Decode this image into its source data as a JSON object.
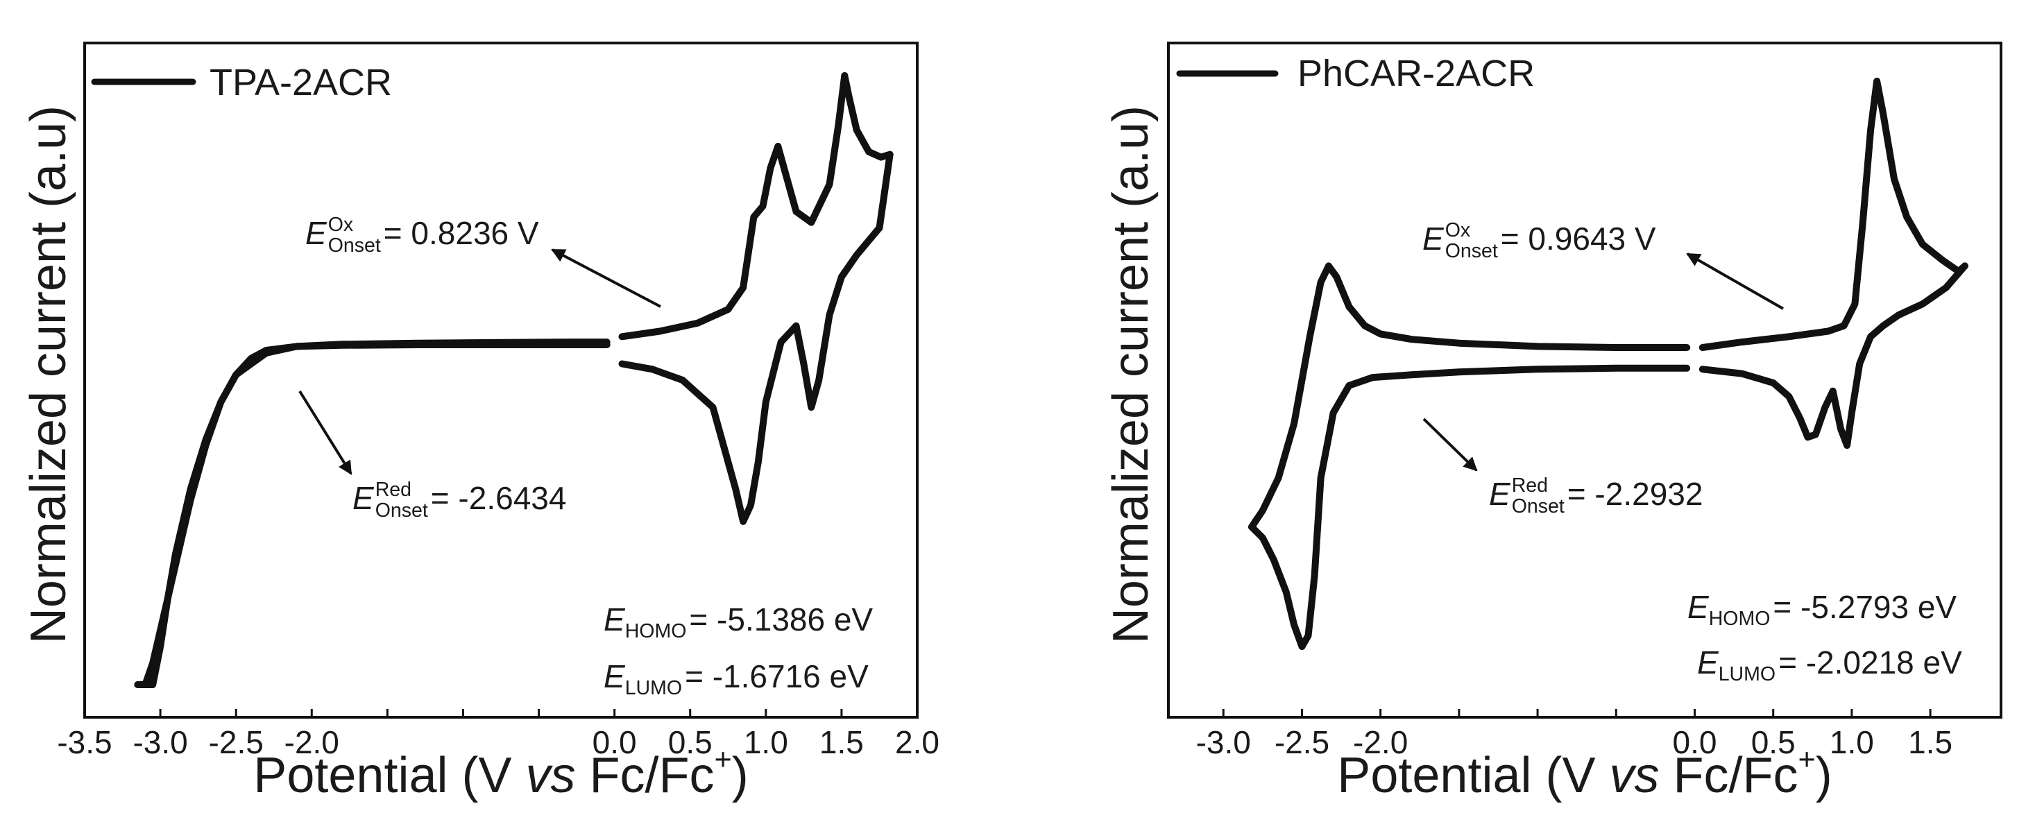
{
  "chart_data": [
    {
      "type": "line",
      "xlabel": {
        "pre": "Potential (V ",
        "vs": "vs",
        "post": " Fc/Fc",
        "sup": "+",
        "close": ")"
      },
      "ylabel": "Normalized current (a.u)",
      "xlim": [
        -3.5,
        2.0
      ],
      "xticks": [
        -3.5,
        -3.0,
        -2.5,
        -2.0,
        -1.5,
        -1.0,
        -0.5,
        0.0,
        0.5,
        1.0,
        1.5,
        2.0
      ],
      "xtick_labels": [
        "-3.5",
        "-3.0",
        "-2.5",
        "-2.0",
        "",
        "",
        "",
        "0.0",
        "0.5",
        "1.0",
        "1.5",
        "2.0"
      ],
      "grid": false,
      "legend": {
        "position": "top-left",
        "label": "TPA-2ACR"
      },
      "series": [
        {
          "name": "TPA-2ACR",
          "segments": [
            {
              "x": [
                -0.05,
                -0.3,
                -0.8,
                -1.3,
                -1.8,
                -2.1,
                -2.3,
                -2.5,
                -2.6,
                -2.7,
                -2.8,
                -2.9,
                -3.0,
                -3.05,
                -3.1,
                -3.13,
                -3.15
              ],
              "y": [
                6.3,
                6.3,
                6.29,
                6.28,
                6.26,
                6.22,
                6.1,
                5.7,
                5.2,
                4.4,
                3.4,
                2.2,
                1.0,
                0.4,
                0.0,
                0.0,
                0.0
              ]
            },
            {
              "x": [
                -3.15,
                -3.1,
                -3.05,
                -3.0,
                -2.95,
                -2.9,
                -2.8,
                -2.7,
                -2.6,
                -2.5,
                -2.4,
                -2.3,
                -2.1,
                -1.8,
                -1.3,
                -0.8,
                -0.3,
                -0.05
              ],
              "y": [
                0.0,
                0.0,
                0.0,
                0.7,
                1.6,
                2.4,
                3.6,
                4.5,
                5.2,
                5.7,
                6.0,
                6.15,
                6.22,
                6.24,
                6.25,
                6.25,
                6.25,
                6.25
              ]
            },
            {
              "x": [
                0.05,
                0.3,
                0.55,
                0.75,
                0.85,
                0.92,
                0.98,
                1.03,
                1.08,
                1.13,
                1.2,
                1.3,
                1.42,
                1.48,
                1.52,
                1.55,
                1.6,
                1.68,
                1.76,
                1.82
              ],
              "y": [
                6.4,
                6.5,
                6.65,
                6.9,
                7.3,
                8.6,
                8.8,
                9.5,
                9.9,
                9.4,
                8.7,
                8.5,
                9.2,
                10.3,
                11.2,
                10.8,
                10.2,
                9.8,
                9.7,
                9.75
              ]
            },
            {
              "x": [
                1.82,
                1.75,
                1.6,
                1.5,
                1.42,
                1.35,
                1.3,
                1.25,
                1.2,
                1.1,
                1.0,
                0.95,
                0.9,
                0.85,
                0.8,
                0.65,
                0.45,
                0.25,
                0.05
              ],
              "y": [
                9.75,
                8.4,
                7.9,
                7.5,
                6.8,
                5.6,
                5.1,
                5.9,
                6.6,
                6.3,
                5.2,
                4.1,
                3.3,
                3.0,
                3.6,
                5.1,
                5.6,
                5.8,
                5.9
              ]
            }
          ]
        }
      ],
      "annotations": {
        "ox": {
          "E": "E",
          "sup": "Ox",
          "sub": "Onset",
          "text": "= 0.8236 V"
        },
        "red": {
          "E": "E",
          "sup": "Red",
          "sub": "Onset",
          "text": "= -2.6434"
        },
        "homo": {
          "E": "E",
          "sub": "HOMO",
          "text": "= -5.1386 eV"
        },
        "lumo": {
          "E": "E",
          "sub": "LUMO",
          "text": "= -1.6716 eV"
        }
      }
    },
    {
      "type": "line",
      "xlabel": {
        "pre": "Potential (V ",
        "vs": "vs",
        "post": " Fc/Fc",
        "sup": "+",
        "close": ")"
      },
      "ylabel": "Normalized current (a.u)",
      "xlim": [
        -3.35,
        1.95
      ],
      "xticks": [
        -3.0,
        -2.5,
        -2.0,
        -1.5,
        -1.0,
        -0.5,
        0.0,
        0.5,
        1.0,
        1.5
      ],
      "xtick_labels": [
        "-3.0",
        "-2.5",
        "-2.0",
        "",
        "",
        "",
        "0.0",
        "0.5",
        "1.0",
        "1.5"
      ],
      "grid": false,
      "legend": {
        "position": "top-left",
        "label": "PhCAR-2ACR"
      },
      "series": [
        {
          "name": "PhCAR-2ACR",
          "segments": [
            {
              "x": [
                -0.05,
                -0.5,
                -1.0,
                -1.5,
                -1.8,
                -2.0,
                -2.1,
                -2.2,
                -2.28,
                -2.33,
                -2.38,
                -2.45,
                -2.55,
                -2.65,
                -2.75,
                -2.82
              ],
              "y": [
                6.2,
                6.2,
                6.22,
                6.28,
                6.35,
                6.45,
                6.6,
                6.95,
                7.5,
                7.7,
                7.4,
                6.4,
                4.8,
                3.8,
                3.2,
                2.9
              ]
            },
            {
              "x": [
                -2.82,
                -2.75,
                -2.68,
                -2.6,
                -2.55,
                -2.5,
                -2.46,
                -2.42,
                -2.38,
                -2.3,
                -2.2,
                -2.05,
                -1.8,
                -1.5,
                -1.0,
                -0.5,
                -0.05
              ],
              "y": [
                2.9,
                2.7,
                2.3,
                1.7,
                1.1,
                0.7,
                0.9,
                2.0,
                3.8,
                5.0,
                5.5,
                5.65,
                5.7,
                5.75,
                5.8,
                5.82,
                5.82
              ]
            },
            {
              "x": [
                0.05,
                0.3,
                0.6,
                0.85,
                0.95,
                1.02,
                1.07,
                1.12,
                1.16,
                1.2,
                1.27,
                1.35,
                1.45,
                1.58,
                1.68,
                1.72
              ],
              "y": [
                6.2,
                6.3,
                6.4,
                6.5,
                6.6,
                7.0,
                8.5,
                10.2,
                11.1,
                10.5,
                9.3,
                8.6,
                8.1,
                7.8,
                7.6,
                7.7
              ]
            },
            {
              "x": [
                1.72,
                1.6,
                1.45,
                1.3,
                1.2,
                1.12,
                1.05,
                1.0,
                0.97,
                0.93,
                0.88,
                0.83,
                0.77,
                0.72,
                0.67,
                0.6,
                0.5,
                0.3,
                0.05
              ],
              "y": [
                7.7,
                7.3,
                7.0,
                6.8,
                6.6,
                6.4,
                5.9,
                5.0,
                4.4,
                4.7,
                5.4,
                5.1,
                4.6,
                4.55,
                4.9,
                5.3,
                5.55,
                5.72,
                5.8
              ]
            }
          ]
        }
      ],
      "annotations": {
        "ox": {
          "E": "E",
          "sup": "Ox",
          "sub": "Onset",
          "text": "= 0.9643 V"
        },
        "red": {
          "E": "E",
          "sup": "Red",
          "sub": "Onset",
          "text": "= -2.2932"
        },
        "homo": {
          "E": "E",
          "sub": "HOMO",
          "text": "= -5.2793 eV"
        },
        "lumo": {
          "E": "E",
          "sub": "LUMO",
          "text": "= -2.0218 eV"
        }
      }
    }
  ]
}
